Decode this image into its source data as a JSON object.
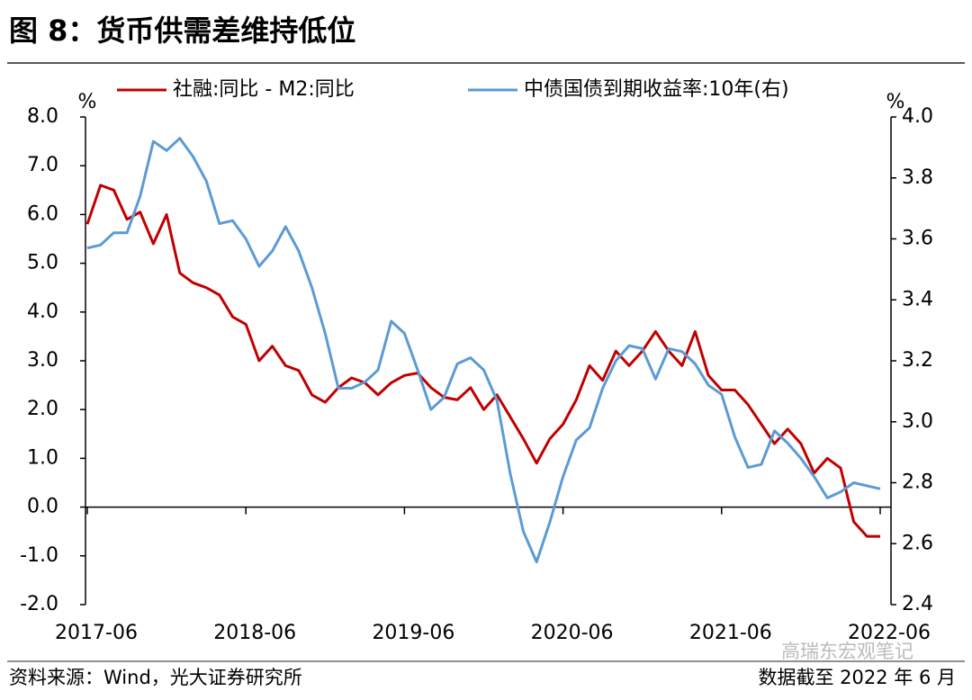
{
  "chart_data": {
    "type": "line",
    "title": "图 8：货币供需差维持低位",
    "y_unit": "%",
    "y2_unit": "%",
    "source": "资料来源：Wind，光大证券研究所",
    "note": "数据截至 2022 年 6 月",
    "watermark": "高瑞东宏观笔记",
    "categories": [
      "2017-06",
      null,
      null,
      null,
      null,
      null,
      null,
      null,
      null,
      null,
      null,
      null,
      "2018-06",
      null,
      null,
      null,
      null,
      null,
      null,
      null,
      null,
      null,
      null,
      null,
      "2019-06",
      null,
      null,
      null,
      null,
      null,
      null,
      null,
      null,
      null,
      null,
      null,
      "2020-06",
      null,
      null,
      null,
      null,
      null,
      null,
      null,
      null,
      null,
      null,
      null,
      "2021-06",
      null,
      null,
      null,
      null,
      null,
      null,
      null,
      null,
      null,
      null,
      null,
      "2022-06"
    ],
    "series": [
      {
        "name": "社融:同比 - M2:同比",
        "color": "#c00000",
        "axis": "y",
        "values": [
          5.8,
          6.6,
          6.5,
          5.9,
          6.05,
          5.4,
          6.0,
          4.8,
          4.6,
          4.5,
          4.35,
          3.9,
          3.75,
          3.0,
          3.3,
          2.9,
          2.8,
          2.3,
          2.15,
          2.45,
          2.65,
          2.55,
          2.3,
          2.55,
          2.7,
          2.75,
          2.45,
          2.25,
          2.2,
          2.45,
          2.0,
          2.3,
          1.85,
          1.4,
          0.9,
          1.4,
          1.7,
          2.2,
          2.9,
          2.6,
          3.2,
          2.9,
          3.2,
          3.6,
          3.2,
          2.9,
          3.6,
          2.7,
          2.4,
          2.4,
          2.1,
          1.7,
          1.3,
          1.6,
          1.3,
          0.7,
          1.0,
          0.8,
          -0.3,
          -0.6,
          -0.6
        ]
      },
      {
        "name": "中债国债到期收益率:10年(右)",
        "color": "#5b9bd5",
        "axis": "y2",
        "values": [
          3.57,
          3.58,
          3.62,
          3.62,
          3.74,
          3.92,
          3.89,
          3.93,
          3.87,
          3.79,
          3.65,
          3.66,
          3.6,
          3.51,
          3.56,
          3.64,
          3.56,
          3.44,
          3.29,
          3.11,
          3.11,
          3.13,
          3.17,
          3.33,
          3.29,
          3.17,
          3.04,
          3.08,
          3.19,
          3.21,
          3.17,
          3.07,
          2.83,
          2.64,
          2.54,
          2.67,
          2.82,
          2.94,
          2.98,
          3.11,
          3.2,
          3.25,
          3.24,
          3.14,
          3.24,
          3.23,
          3.19,
          3.12,
          3.09,
          2.95,
          2.85,
          2.86,
          2.97,
          2.93,
          2.88,
          2.82,
          2.75,
          2.77,
          2.8,
          2.79,
          2.78
        ]
      }
    ],
    "ylim": [
      -2,
      8
    ],
    "yticks": [
      {
        "value": -2,
        "label": "-2.0"
      },
      {
        "value": -1,
        "label": "-1.0"
      },
      {
        "value": 0,
        "label": "0.0"
      },
      {
        "value": 1,
        "label": "1.0"
      },
      {
        "value": 2,
        "label": "2.0"
      },
      {
        "value": 3,
        "label": "3.0"
      },
      {
        "value": 4,
        "label": "4.0"
      },
      {
        "value": 5,
        "label": "5.0"
      },
      {
        "value": 6,
        "label": "6.0"
      },
      {
        "value": 7,
        "label": "7.0"
      },
      {
        "value": 8,
        "label": "8.0"
      }
    ],
    "y2lim": [
      2.4,
      4.0
    ],
    "y2ticks": [
      2.4,
      2.6,
      2.8,
      {
        "value": 3,
        "label": "3.0"
      },
      3.2,
      3.4,
      3.6,
      3.8,
      {
        "value": 4,
        "label": "4.0"
      }
    ],
    "grid": false,
    "legend": "top"
  }
}
